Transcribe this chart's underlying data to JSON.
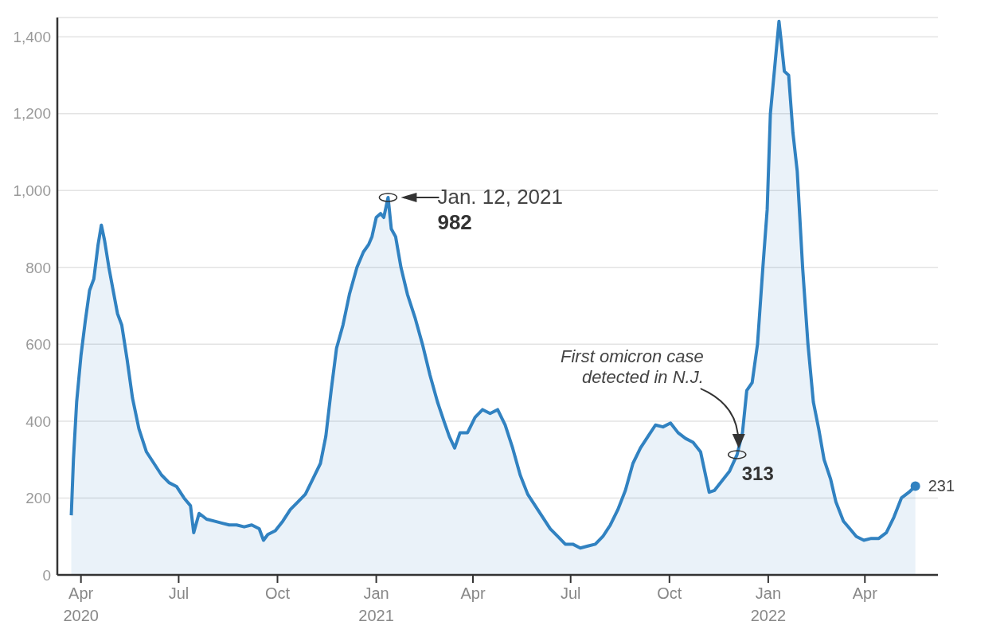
{
  "chart_data": {
    "type": "area",
    "x": [
      "2020-03-23",
      "2020-03-25",
      "2020-03-28",
      "2020-04-01",
      "2020-04-05",
      "2020-04-09",
      "2020-04-13",
      "2020-04-17",
      "2020-04-20",
      "2020-04-23",
      "2020-04-27",
      "2020-05-01",
      "2020-05-05",
      "2020-05-09",
      "2020-05-14",
      "2020-05-19",
      "2020-05-25",
      "2020-06-01",
      "2020-06-08",
      "2020-06-15",
      "2020-06-22",
      "2020-06-29",
      "2020-07-06",
      "2020-07-12",
      "2020-07-15",
      "2020-07-20",
      "2020-07-27",
      "2020-08-03",
      "2020-08-10",
      "2020-08-17",
      "2020-08-24",
      "2020-08-31",
      "2020-09-07",
      "2020-09-14",
      "2020-09-18",
      "2020-09-22",
      "2020-09-29",
      "2020-10-06",
      "2020-10-13",
      "2020-10-20",
      "2020-10-27",
      "2020-11-03",
      "2020-11-10",
      "2020-11-15",
      "2020-11-20",
      "2020-11-25",
      "2020-12-01",
      "2020-12-07",
      "2020-12-14",
      "2020-12-20",
      "2020-12-25",
      "2020-12-28",
      "2021-01-01",
      "2021-01-05",
      "2021-01-08",
      "2021-01-12",
      "2021-01-15",
      "2021-01-19",
      "2021-01-24",
      "2021-01-30",
      "2021-02-06",
      "2021-02-13",
      "2021-02-20",
      "2021-02-27",
      "2021-03-05",
      "2021-03-10",
      "2021-03-15",
      "2021-03-20",
      "2021-03-27",
      "2021-04-03",
      "2021-04-10",
      "2021-04-17",
      "2021-04-24",
      "2021-05-01",
      "2021-05-08",
      "2021-05-15",
      "2021-05-22",
      "2021-05-29",
      "2021-06-05",
      "2021-06-12",
      "2021-06-19",
      "2021-06-26",
      "2021-07-03",
      "2021-07-10",
      "2021-07-17",
      "2021-07-24",
      "2021-07-31",
      "2021-08-07",
      "2021-08-14",
      "2021-08-21",
      "2021-08-28",
      "2021-09-04",
      "2021-09-11",
      "2021-09-18",
      "2021-09-25",
      "2021-10-02",
      "2021-10-09",
      "2021-10-16",
      "2021-10-23",
      "2021-10-30",
      "2021-11-07",
      "2021-11-12",
      "2021-11-19",
      "2021-11-26",
      "2021-12-03",
      "2021-12-08",
      "2021-12-12",
      "2021-12-17",
      "2021-12-22",
      "2021-12-27",
      "2021-12-31",
      "2022-01-03",
      "2022-01-06",
      "2022-01-09",
      "2022-01-11",
      "2022-01-13",
      "2022-01-16",
      "2022-01-20",
      "2022-01-24",
      "2022-01-28",
      "2022-02-02",
      "2022-02-07",
      "2022-02-12",
      "2022-02-17",
      "2022-02-22",
      "2022-02-28",
      "2022-03-05",
      "2022-03-12",
      "2022-03-18",
      "2022-03-24",
      "2022-03-31",
      "2022-04-07",
      "2022-04-14",
      "2022-04-21",
      "2022-04-28",
      "2022-05-05",
      "2022-05-12",
      "2022-05-18"
    ],
    "values": [
      155,
      300,
      450,
      570,
      660,
      740,
      770,
      860,
      910,
      870,
      800,
      740,
      680,
      650,
      560,
      460,
      380,
      320,
      290,
      260,
      240,
      230,
      200,
      180,
      110,
      160,
      145,
      140,
      135,
      130,
      130,
      125,
      130,
      120,
      90,
      105,
      115,
      140,
      170,
      190,
      210,
      250,
      290,
      360,
      480,
      590,
      650,
      730,
      800,
      840,
      860,
      880,
      930,
      940,
      930,
      982,
      900,
      880,
      800,
      730,
      670,
      600,
      520,
      450,
      400,
      360,
      330,
      370,
      370,
      410,
      430,
      420,
      430,
      390,
      330,
      260,
      210,
      180,
      150,
      120,
      100,
      80,
      80,
      70,
      75,
      80,
      100,
      130,
      170,
      220,
      290,
      330,
      360,
      390,
      385,
      395,
      370,
      355,
      345,
      320,
      215,
      220,
      245,
      270,
      313,
      370,
      480,
      500,
      600,
      800,
      950,
      1200,
      1290,
      1380,
      1440,
      1390,
      1310,
      1300,
      1150,
      1050,
      800,
      600,
      450,
      380,
      300,
      250,
      190,
      140,
      120,
      100,
      90,
      95,
      95,
      110,
      150,
      200,
      215,
      231
    ],
    "value_labels": [
      null,
      null,
      null,
      null,
      null,
      null,
      null,
      null,
      null,
      null,
      null,
      null,
      null,
      null,
      null,
      null,
      null,
      null,
      null,
      null,
      null,
      null,
      null,
      null,
      null,
      null,
      null,
      null,
      null,
      null,
      null,
      null,
      null,
      null,
      null,
      null,
      null,
      null,
      null,
      null,
      null,
      null,
      null,
      null,
      null,
      null,
      null,
      null,
      null,
      null,
      null,
      null,
      null,
      null,
      null,
      null,
      null,
      null,
      null,
      null,
      null,
      null,
      null,
      null,
      null,
      null,
      null,
      null,
      null,
      null,
      null,
      null,
      null,
      null,
      null,
      null,
      null,
      null,
      null,
      null,
      null,
      null,
      null,
      null,
      null,
      null,
      null,
      null,
      null,
      null,
      null,
      null,
      null,
      null,
      null,
      null,
      null,
      null,
      null,
      null,
      null,
      null,
      null,
      null,
      null,
      null,
      null,
      null,
      null,
      null,
      null,
      null,
      null,
      null,
      null,
      null,
      null,
      null,
      null,
      null,
      null,
      null,
      null,
      null,
      null,
      null,
      null,
      null,
      null,
      null,
      null,
      null,
      null,
      null,
      null,
      null,
      null,
      "231"
    ],
    "color": "#3182c1",
    "xlim": [
      "2020-03-10",
      "2022-06-08"
    ],
    "xticks": [
      {
        "value": "2020-04-01",
        "label": "Apr 2020"
      },
      {
        "value": "2020-07-01",
        "label": "Jul"
      },
      {
        "value": "2020-10-01",
        "label": "Oct"
      },
      {
        "value": "2021-01-01",
        "label": "Jan 2021"
      },
      {
        "value": "2021-04-01",
        "label": "Apr"
      },
      {
        "value": "2021-07-01",
        "label": "Jul"
      },
      {
        "value": "2021-10-01",
        "label": "Oct"
      },
      {
        "value": "2022-01-01",
        "label": "Jan 2022"
      },
      {
        "value": "2022-04-01",
        "label": "Apr"
      }
    ],
    "ylim": [
      0,
      1450
    ],
    "yticks": [
      0,
      200,
      400,
      600,
      800,
      {
        "value": 1000,
        "label": "1,000"
      },
      {
        "value": 1200,
        "label": "1,200"
      },
      {
        "value": 1400,
        "label": "1,400"
      }
    ],
    "grid": "y",
    "annotations": [
      {
        "text": "Jan. 12, 2021",
        "x": "2021-01-12",
        "y": 982
      },
      {
        "text": "982",
        "x": "2021-01-12",
        "y": 982
      },
      "First omicron case detected in N.J.",
      {
        "text": "313",
        "x": "2021-12-03",
        "y": 313
      }
    ]
  }
}
